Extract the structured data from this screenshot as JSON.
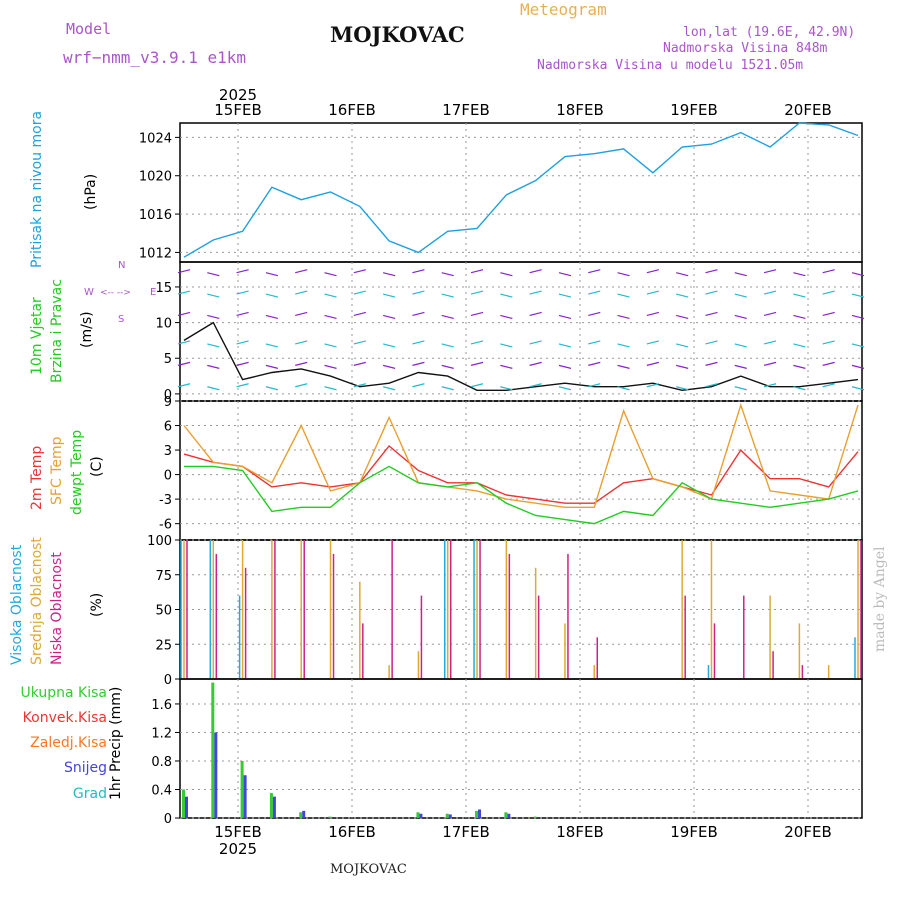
{
  "header": {
    "model_label": "Model",
    "model_name": "wrf−nmm_v3.9.1  e1km",
    "station": "MOJKOVAC",
    "title": "Meteogram",
    "lonlat": "lon,lat (19.6E, 42.9N)",
    "elev": "Nadmorska Visina 848m",
    "elev_model": "Nadmorska Visina u modelu 1521.05m"
  },
  "top_axis": {
    "year": "2025"
  },
  "bottom_axis": {
    "year": "2025"
  },
  "days": [
    "15FEB",
    "16FEB",
    "17FEB",
    "18FEB",
    "19FEB",
    "20FEB"
  ],
  "footer": "MOJKOVAC",
  "signature": "made by Angel",
  "panels": {
    "pressure": {
      "label": "Pritisak na nivou mora",
      "unit": "(hPa)",
      "color": "#1fa0e0"
    },
    "wind": {
      "label1": "10m Vjetar",
      "label2": "Brzina i Pravac",
      "unit": "(m/s)",
      "compass_n": "N",
      "compass_s": "S",
      "compass_e": "E",
      "compass_w": "W"
    },
    "temp": {
      "t2m": "2m Temp",
      "sfc": "SFC Temp",
      "dew1": "dewpt Temp",
      "unit": "(C)",
      "colors": {
        "t2m": "#ee3333",
        "sfc": "#e8a030",
        "dew": "#22cc22"
      }
    },
    "cloud": {
      "high": "Visoka Oblacnost",
      "mid": "Srednja Oblacnost",
      "low": "Niska Oblacnost",
      "unit": "(%)",
      "colors": {
        "high": "#22aadd",
        "mid": "#ddaa33",
        "low": "#cc2288"
      }
    },
    "precip": {
      "unit": "1hr Precip (mm)",
      "legend": [
        "Ukupna Kisa",
        "Konvek.Kisa",
        "Zaledj.Kisa",
        "Snijeg",
        "Grad"
      ],
      "colors": [
        "#33cc33",
        "#ee3333",
        "#ff7722",
        "#4444dd",
        "#22bbbb"
      ]
    }
  },
  "chart_data": [
    {
      "type": "line",
      "ylabel": "Pritisak na nivou mora (hPa)",
      "x": [
        "14FEB 18h",
        "15FEB 00h",
        "15FEB 06h",
        "15FEB 12h",
        "15FEB 18h",
        "16FEB 00h",
        "16FEB 06h",
        "16FEB 12h",
        "16FEB 18h",
        "17FEB 00h",
        "17FEB 06h",
        "17FEB 12h",
        "17FEB 18h",
        "18FEB 00h",
        "18FEB 06h",
        "18FEB 12h",
        "18FEB 18h",
        "19FEB 00h",
        "19FEB 06h",
        "19FEB 12h",
        "19FEB 18h",
        "20FEB 00h",
        "20FEB 06h",
        "20FEB 12h"
      ],
      "series": [
        {
          "values": [
            1011.5,
            1013.3,
            1014.2,
            1018.8,
            1017.5,
            1018.3,
            1016.8,
            1013.2,
            1012.0,
            1014.2,
            1014.5,
            1018.0,
            1019.5,
            1022.0,
            1022.3,
            1022.8,
            1020.3,
            1023.0,
            1023.3,
            1024.5,
            1023.0,
            1025.5,
            1025.3,
            1024.2
          ]
        }
      ],
      "ylim": [
        1011,
        1025.5
      ],
      "yticks": [
        1012,
        1016,
        1020,
        1024
      ]
    },
    {
      "type": "line",
      "ylabel": "10m Vjetar Brzina i Pravac (m/s)",
      "x": [
        "14FEB 18h",
        "15FEB 00h",
        "15FEB 06h",
        "15FEB 12h",
        "15FEB 18h",
        "16FEB 00h",
        "16FEB 06h",
        "16FEB 12h",
        "16FEB 18h",
        "17FEB 00h",
        "17FEB 06h",
        "17FEB 12h",
        "17FEB 18h",
        "18FEB 00h",
        "18FEB 06h",
        "18FEB 12h",
        "18FEB 18h",
        "19FEB 00h",
        "19FEB 06h",
        "19FEB 12h",
        "19FEB 18h",
        "20FEB 00h",
        "20FEB 06h",
        "20FEB 12h"
      ],
      "series": [
        {
          "values": [
            7.5,
            10,
            2,
            3,
            3.5,
            2.5,
            1,
            1.5,
            3,
            2.5,
            0.5,
            0.5,
            1,
            1.5,
            1,
            1,
            1.5,
            0.5,
            1,
            2.5,
            1,
            1,
            1.5,
            2
          ]
        }
      ],
      "ylim": [
        -1,
        18.5
      ],
      "yticks": [
        0,
        5,
        10,
        15
      ]
    },
    {
      "type": "line",
      "ylabel": "Temp (C)",
      "x": [
        "14FEB 18h",
        "15FEB 00h",
        "15FEB 06h",
        "15FEB 12h",
        "15FEB 18h",
        "16FEB 00h",
        "16FEB 06h",
        "16FEB 12h",
        "16FEB 18h",
        "17FEB 00h",
        "17FEB 06h",
        "17FEB 12h",
        "17FEB 18h",
        "18FEB 00h",
        "18FEB 06h",
        "18FEB 12h",
        "18FEB 18h",
        "19FEB 00h",
        "19FEB 06h",
        "19FEB 12h",
        "19FEB 18h",
        "20FEB 00h",
        "20FEB 06h",
        "20FEB 12h"
      ],
      "series": [
        {
          "name": "2m Temp",
          "values": [
            2.5,
            1.5,
            1.0,
            -1.5,
            -1,
            -1.5,
            -1,
            3.5,
            0.5,
            -1,
            -1,
            -2.5,
            -3,
            -3.5,
            -3.5,
            -1,
            -0.5,
            -1.5,
            -2.5,
            3.0,
            -0.5,
            -0.5,
            -1.5,
            2.8
          ]
        },
        {
          "name": "SFC Temp",
          "values": [
            6,
            1.5,
            1,
            -1,
            6,
            -2,
            -1,
            7,
            -1,
            -1.5,
            -2,
            -3,
            -3.5,
            -4,
            -4,
            7.8,
            -0.5,
            -1.5,
            -3,
            8.5,
            -2,
            -2.5,
            -3,
            8.5
          ]
        },
        {
          "name": "dewpt Temp",
          "values": [
            1,
            1,
            0.5,
            -4.5,
            -4,
            -4,
            -1,
            1,
            -1,
            -1.5,
            -1,
            -3.5,
            -5,
            -5.5,
            -6,
            -4.5,
            -5,
            -1,
            -3,
            -3.5,
            -4,
            -3.5,
            -3,
            -2
          ]
        }
      ],
      "ylim": [
        -8,
        9
      ],
      "yticks": [
        -6,
        -3,
        0,
        3,
        6,
        9
      ]
    },
    {
      "type": "bar",
      "ylabel": "Oblacnost (%)",
      "x": [
        "14FEB 18h",
        "15FEB 00h",
        "15FEB 06h",
        "15FEB 12h",
        "15FEB 18h",
        "16FEB 00h",
        "16FEB 06h",
        "16FEB 12h",
        "16FEB 18h",
        "17FEB 00h",
        "17FEB 06h",
        "17FEB 12h",
        "17FEB 18h",
        "18FEB 00h",
        "18FEB 06h",
        "18FEB 12h",
        "18FEB 18h",
        "19FEB 00h",
        "19FEB 06h",
        "19FEB 12h",
        "19FEB 18h",
        "20FEB 00h",
        "20FEB 06h",
        "20FEB 12h"
      ],
      "series": [
        {
          "name": "Visoka Oblacnost",
          "values": [
            100,
            100,
            60,
            0,
            0,
            0,
            0,
            0,
            0,
            100,
            100,
            0,
            0,
            0,
            0,
            0,
            0,
            0,
            10,
            0,
            0,
            0,
            0,
            30
          ]
        },
        {
          "name": "Srednja Oblacnost",
          "values": [
            100,
            100,
            100,
            100,
            100,
            100,
            70,
            10,
            20,
            100,
            100,
            100,
            80,
            40,
            10,
            0,
            0,
            100,
            100,
            0,
            60,
            40,
            10,
            100
          ]
        },
        {
          "name": "Niska Oblacnost",
          "values": [
            100,
            90,
            80,
            100,
            100,
            90,
            40,
            100,
            60,
            100,
            100,
            90,
            60,
            90,
            30,
            0,
            0,
            60,
            40,
            60,
            20,
            10,
            0,
            100
          ]
        }
      ],
      "ylim": [
        0,
        100
      ],
      "yticks": [
        0,
        25,
        50,
        75,
        100
      ]
    },
    {
      "type": "bar",
      "ylabel": "1hr Precip (mm)",
      "x": [
        "14FEB 18h",
        "15FEB 00h",
        "15FEB 06h",
        "15FEB 12h",
        "15FEB 18h",
        "16FEB 00h",
        "16FEB 06h",
        "16FEB 12h",
        "16FEB 18h",
        "17FEB 00h",
        "17FEB 06h",
        "17FEB 12h",
        "17FEB 18h",
        "18FEB 00h",
        "18FEB 06h",
        "18FEB 12h",
        "18FEB 18h",
        "19FEB 00h",
        "19FEB 06h",
        "19FEB 12h",
        "19FEB 18h",
        "20FEB 00h",
        "20FEB 06h",
        "20FEB 12h"
      ],
      "series": [
        {
          "name": "Ukupna Kisa",
          "values": [
            0.4,
            1.9,
            0.8,
            0.35,
            0.08,
            0.02,
            0,
            0,
            0.08,
            0.06,
            0.1,
            0.08,
            0.02,
            0,
            0,
            0,
            0,
            0,
            0,
            0,
            0,
            0,
            0,
            0
          ]
        },
        {
          "name": "Snijeg",
          "values": [
            0.3,
            1.2,
            0.6,
            0.3,
            0.1,
            0,
            0,
            0,
            0.06,
            0.05,
            0.12,
            0.06,
            0,
            0,
            0,
            0,
            0,
            0,
            0,
            0,
            0,
            0,
            0,
            0
          ]
        }
      ],
      "ylim": [
        0,
        1.95
      ],
      "yticks": [
        0,
        0.4,
        0.8,
        1.2,
        1.6
      ]
    }
  ]
}
